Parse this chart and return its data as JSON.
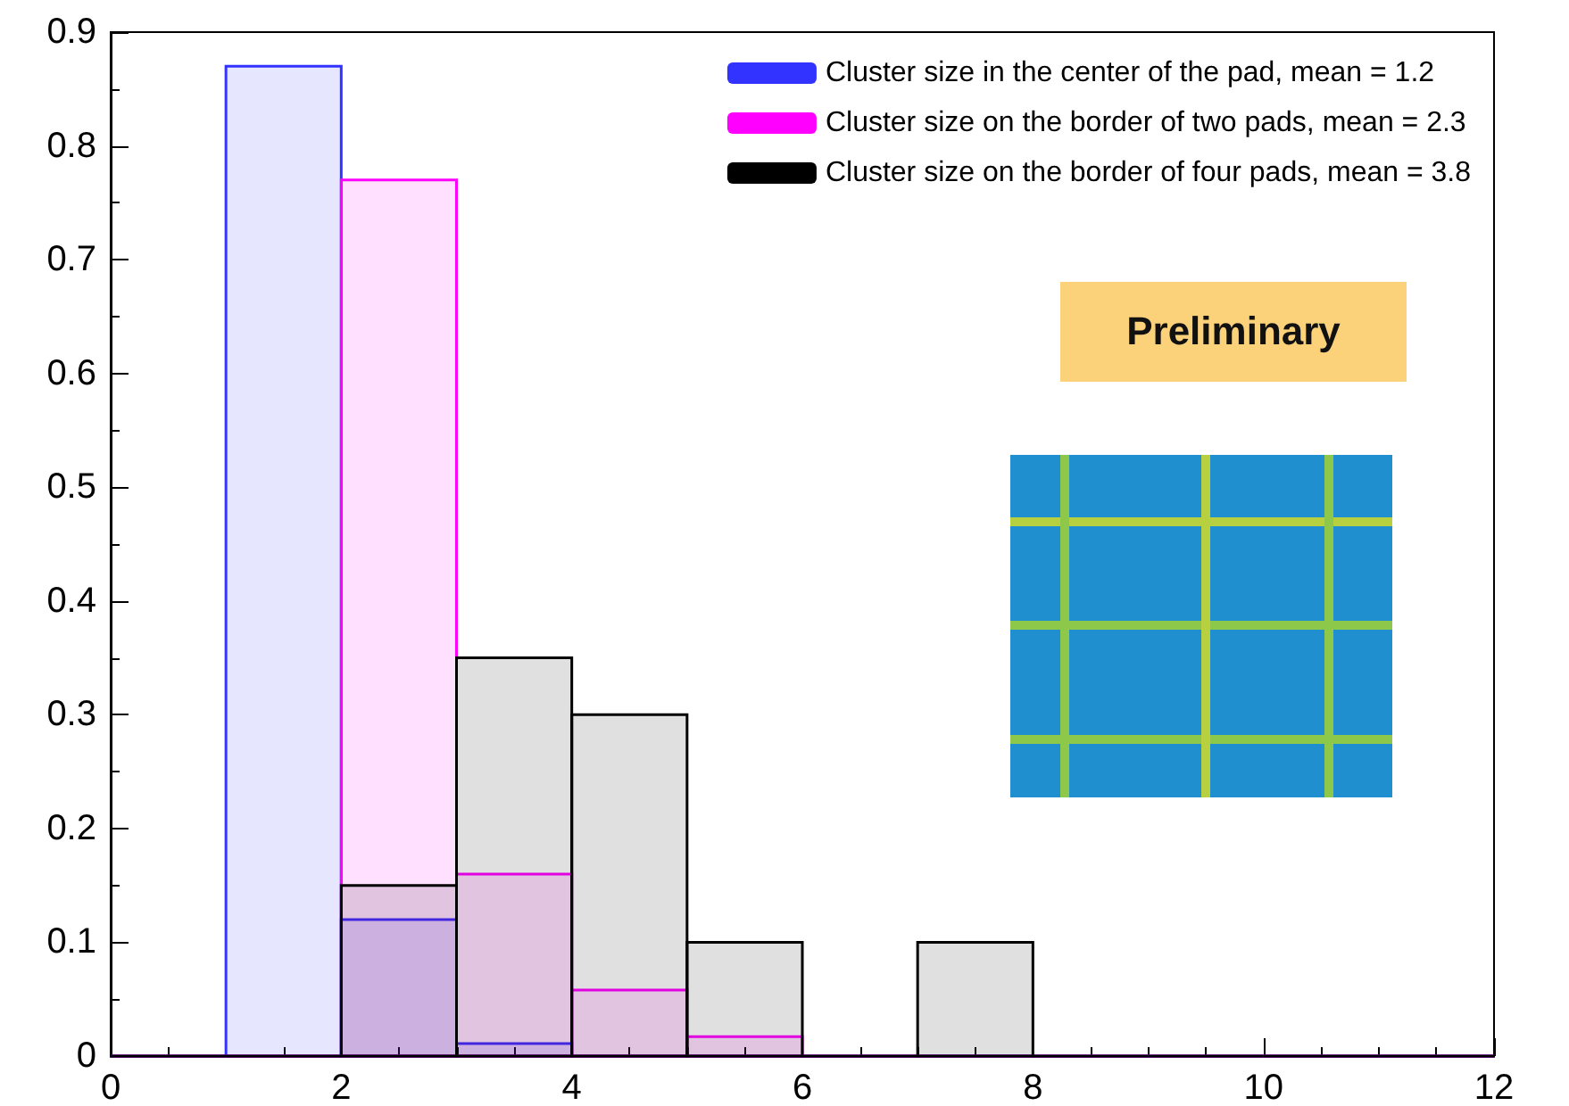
{
  "chart_data": {
    "type": "histogram",
    "bins": [
      0,
      1,
      2,
      3,
      4,
      5,
      6,
      7,
      8,
      9,
      10,
      11,
      12
    ],
    "series": [
      {
        "name": "Cluster size in the center of the pad, mean = 1.2",
        "color": "#3333ff",
        "values": [
          0,
          0.87,
          0.12,
          0.011,
          0,
          0,
          0,
          0,
          0,
          0,
          0,
          0
        ]
      },
      {
        "name": "Cluster size on the border of two pads, mean = 2.3",
        "color": "#ff00ff",
        "values": [
          0,
          0,
          0.77,
          0.16,
          0.058,
          0.017,
          0,
          0,
          0,
          0,
          0,
          0
        ]
      },
      {
        "name": "Cluster size on the border of four pads, mean = 3.8",
        "color": "#000000",
        "values": [
          0,
          0,
          0.15,
          0.35,
          0.3,
          0.1,
          0,
          0.1,
          0,
          0,
          0,
          0
        ]
      }
    ],
    "xlim": [
      0,
      12
    ],
    "xticks": [
      0,
      2,
      4,
      6,
      8,
      10,
      12
    ],
    "ylim": [
      0,
      0.9
    ],
    "yticks": [
      0,
      0.1,
      0.2,
      0.3,
      0.4,
      0.5,
      0.6,
      0.7,
      0.8,
      0.9
    ],
    "annotations": [
      "Preliminary"
    ],
    "grid": false,
    "legend": "top right"
  }
}
